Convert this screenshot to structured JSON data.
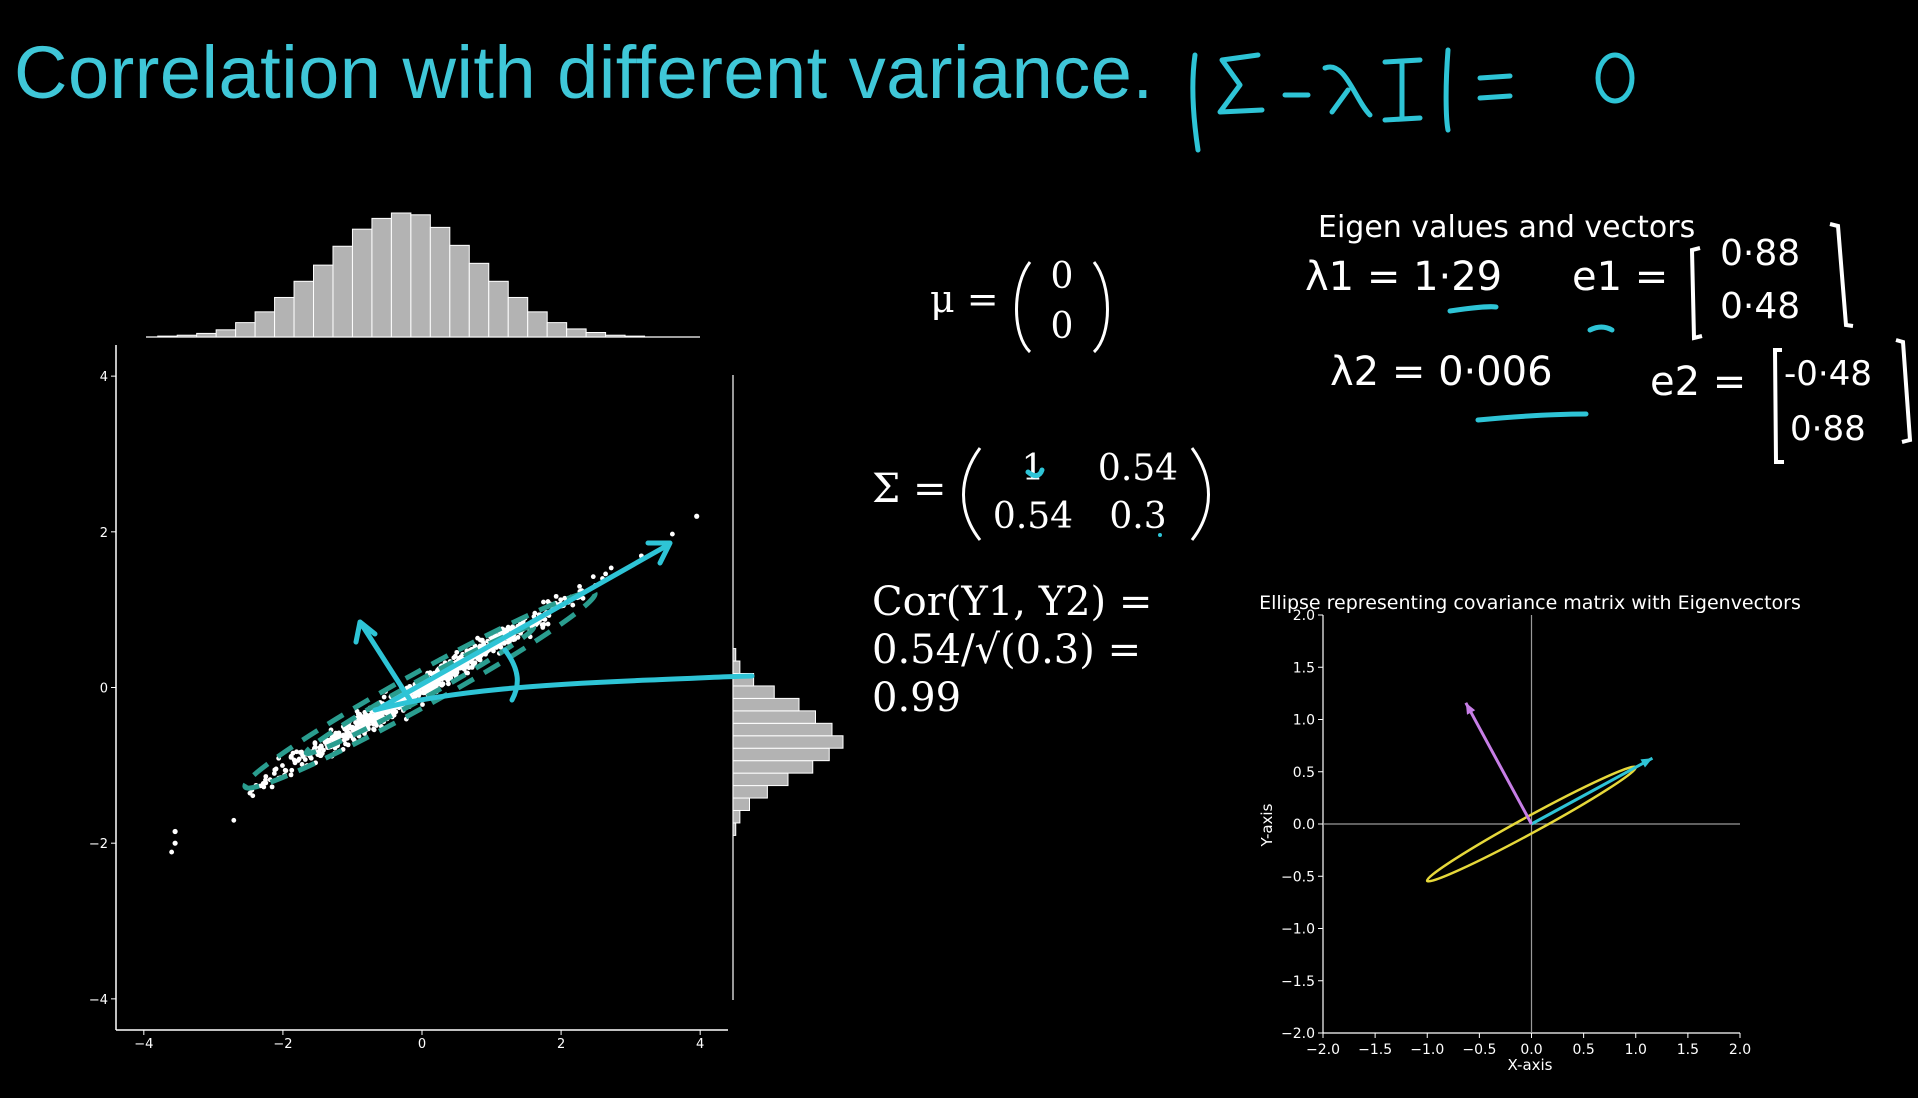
{
  "slide": {
    "title": "Correlation with different variance.",
    "handwritten_equation": "|Σ - λI| = 0",
    "mu_label": "μ =",
    "mu_vector": [
      "0",
      "0"
    ],
    "sigma_label": "Σ =",
    "sigma_matrix": [
      [
        "1",
        "0.54"
      ],
      [
        "0.54",
        "0.3"
      ]
    ],
    "correlation_lines": [
      "Cor(Y1, Y2) =",
      "0.54/√(0.3) =",
      "0.99"
    ],
    "eigen_heading": "Eigen values and vectors",
    "lambda1": "λ1 = 1·29",
    "e1_label": "e1 =",
    "e1_vector": [
      "0·88",
      "0·48"
    ],
    "lambda2": "λ2 = 0·006",
    "e2_label": "e2 =",
    "e2_vector": [
      "-0·48",
      "0·88"
    ],
    "ink_color": "#2ec4d6",
    "title_color": "#3fc7d8"
  },
  "chart_data": [
    {
      "type": "scatter",
      "title": "",
      "xlabel": "",
      "ylabel": "",
      "xlim": [
        -4.4,
        4.4
      ],
      "ylim": [
        -4.4,
        4.4
      ],
      "x_ticks": [
        -4,
        -2,
        0,
        2,
        4
      ],
      "y_ticks": [
        -4,
        -2,
        0,
        2,
        4
      ],
      "grid": false,
      "point_color": "#ffffff",
      "points_description_free": true,
      "main_axis_slope": 0.54,
      "x_range": [
        -3.6,
        3.6
      ],
      "marginal_x_histogram": {
        "bin_edges_start": -3.8,
        "bin_width": 0.28,
        "counts": [
          1,
          2,
          4,
          8,
          16,
          28,
          44,
          62,
          80,
          101,
          120,
          132,
          138,
          136,
          122,
          102,
          82,
          62,
          44,
          28,
          16,
          9,
          5,
          2,
          1,
          0
        ]
      },
      "marginal_y_histogram": {
        "bin_edges_start": -1.9,
        "bin_width": 0.16,
        "counts": [
          2,
          5,
          12,
          25,
          40,
          58,
          70,
          80,
          72,
          60,
          48,
          30,
          15,
          5,
          2,
          0
        ],
        "color": "#b3b3b3"
      },
      "overlay_ellipses_color": "#2a9d8f"
    },
    {
      "type": "line",
      "title": "Ellipse representing covariance matrix with Eigenvectors",
      "xlabel": "X-axis",
      "ylabel": "Y-axis",
      "xlim": [
        -2.0,
        2.0
      ],
      "ylim": [
        -2.0,
        2.0
      ],
      "x_ticks": [
        "−2.0",
        "−1.5",
        "−1.0",
        "−0.5",
        "0.0",
        "0.5",
        "1.0",
        "1.5",
        "2.0"
      ],
      "y_ticks": [
        "−2.0",
        "−1.5",
        "−1.0",
        "−0.5",
        "0.0",
        "0.5",
        "1.0",
        "1.5",
        "2.0"
      ],
      "ellipse": {
        "center": [
          0,
          0
        ],
        "semi_major": 1.14,
        "semi_minor": 0.08,
        "angle_deg": 28.6,
        "color": "#e6d83a"
      },
      "eigenvectors": [
        {
          "from": [
            0,
            0
          ],
          "to": [
            1.16,
            0.63
          ],
          "color": "#2ec4d6"
        },
        {
          "from": [
            0,
            0
          ],
          "to": [
            -0.63,
            1.16
          ],
          "color": "#c77ee6"
        }
      ],
      "grid": false
    }
  ]
}
